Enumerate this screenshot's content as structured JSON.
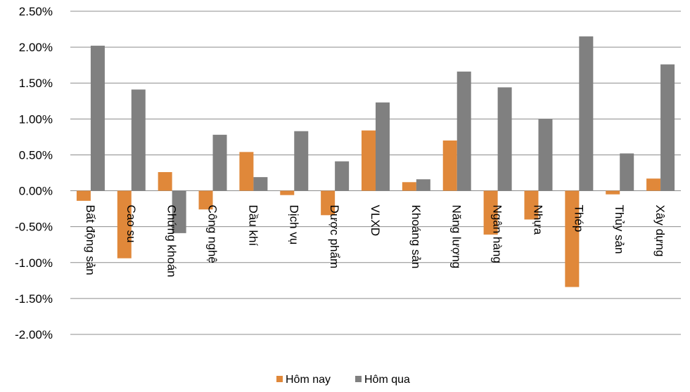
{
  "chart_data": {
    "type": "bar",
    "categories": [
      "Bất động sản",
      "Cao su",
      "Chứng khoán",
      "Công nghệ",
      "Dầu khí",
      "Dịch vụ",
      "Dược phẩm",
      "VLXD",
      "Khoáng sản",
      "Năng lượng",
      "Ngân hàng",
      "Nhựa",
      "Thép",
      "Thủy sản",
      "Xây dựng"
    ],
    "series": [
      {
        "name": "Hôm nay",
        "color": "#e0883a",
        "values": [
          -0.0014,
          -0.0094,
          0.0026,
          -0.0026,
          0.0054,
          -0.0006,
          -0.0034,
          0.0084,
          0.0012,
          0.007,
          -0.0061,
          -0.004,
          -0.0134,
          -0.0005,
          0.0017
        ]
      },
      {
        "name": "Hôm qua",
        "color": "#808080",
        "values": [
          0.0202,
          0.0141,
          -0.0059,
          0.0078,
          0.0019,
          0.0083,
          0.0041,
          0.0123,
          0.0016,
          0.0166,
          0.0144,
          0.01,
          0.0215,
          0.0052,
          0.0176
        ]
      }
    ],
    "ylim": [
      -0.02,
      0.025
    ],
    "yticks": [
      0.025,
      0.02,
      0.015,
      0.01,
      0.005,
      0.0,
      -0.005,
      -0.01,
      -0.015,
      -0.02
    ],
    "ytick_labels": [
      "2.50%",
      "2.00%",
      "1.50%",
      "1.00%",
      "0.50%",
      "0.00%",
      "-0.50%",
      "-1.00%",
      "-1.50%",
      "-2.00%"
    ],
    "grid": true,
    "legend": "bottom-center",
    "title": "",
    "xlabel": "",
    "ylabel": ""
  }
}
